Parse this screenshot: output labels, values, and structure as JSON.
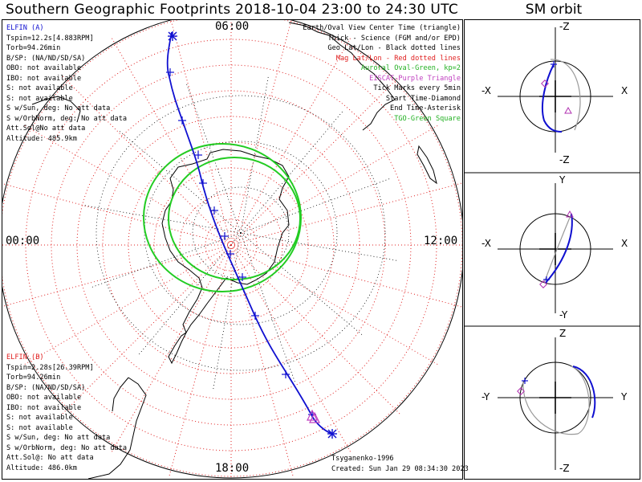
{
  "header": {
    "title": "Southern Geographic Footprints 2018-10-04 23:00 to 24:30 UTC",
    "sm_title": "SM orbit"
  },
  "hour_labels": {
    "top": "06:00",
    "left": "00:00",
    "right": "12:00",
    "bottom": "18:00"
  },
  "elfin_a": {
    "name": "ELFIN (A)",
    "color": "#1010d0",
    "lines": [
      "Tspin=12.2s[4.883RPM]",
      "Torb=94.26min",
      "B/SP: (NA/ND/SD/SA)",
      "OBO: not available",
      "IBO: not available",
      "S: not available",
      "S: not available",
      "S w/Sun, deg: No att data",
      "S w/OrbNorm, deg: No att data",
      "Att.Sol@No att data",
      "Altitude: 485.9km"
    ]
  },
  "elfin_b": {
    "name": "ELFIN (B)",
    "color": "#e02020",
    "lines": [
      "Tspin=2.28s[26.39RPM]",
      "Torb=94.26min",
      "B/SP: (NA/ND/SD/SA)",
      "OBO: not available",
      "IBO: not available",
      "S: not available",
      "S: not available",
      "S w/Sun, deg: No att data",
      "S w/OrbNorm, deg: No att data",
      "Att.Sol@: No att data",
      "Altitude: 486.0km"
    ]
  },
  "legend": [
    {
      "text": "Earth/Oval View Center Time (triangle)",
      "color": "#000000"
    },
    {
      "text": "Thick - Science (FGM and/or EPD)",
      "color": "#000000"
    },
    {
      "text": "Geo Lat/Lon - Black dotted lines",
      "color": "#000000"
    },
    {
      "text": "Mag Lat/Lon - Red dotted lines",
      "color": "#e02020"
    },
    {
      "text": "Auroral Oval-Green, kp=2",
      "color": "#22b022"
    },
    {
      "text": "EISCAT-Purple Triangle",
      "color": "#c040c0"
    },
    {
      "text": "Tick Marks every 5min",
      "color": "#000000"
    },
    {
      "text": "Start Time-Diamond",
      "color": "#000000"
    },
    {
      "text": "End Time-Asterisk",
      "color": "#000000"
    },
    {
      "text": "TGO-Green Square",
      "color": "#22b022"
    }
  ],
  "credits": {
    "model": "Tsyganenko-1996",
    "created": "Created: Sun Jan 29 08:34:30 2023"
  },
  "sm_panels": [
    {
      "top": "-Z",
      "bottom": "-Z",
      "left": "-X",
      "right": "X"
    },
    {
      "top": "Y",
      "bottom": "-Y",
      "left": "-X",
      "right": "X"
    },
    {
      "top": "Z",
      "bottom": "-Z",
      "left": "-Y",
      "right": "Y"
    }
  ],
  "colors": {
    "track": "#1010d0",
    "oval": "#22cc22",
    "mag_grid": "#e02020",
    "earth_icon": "#b030b0"
  }
}
